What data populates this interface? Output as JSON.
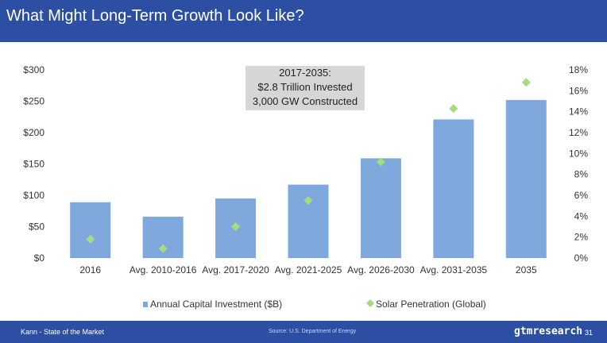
{
  "header": {
    "title": "What Might Long-Term Growth Look Like?"
  },
  "annotation": {
    "lines": [
      "2017-2035:",
      "$2.8 Trillion Invested",
      "3,000 GW Constructed"
    ]
  },
  "footer": {
    "left": "Kann - State of the Market",
    "source": "Source: U.S. Department of Energy",
    "brand": "gtmresearch",
    "page": "31"
  },
  "colors": {
    "bar": "#7fa8dd",
    "marker": "#a6dc7e",
    "header": "#2d4fa3"
  },
  "chart_data": {
    "type": "bar",
    "categories": [
      "2016",
      "Avg. 2010-2016",
      "Avg. 2017-2020",
      "Avg. 2021-2025",
      "Avg. 2026-2030",
      "Avg. 2031-2035",
      "2035"
    ],
    "series": [
      {
        "name": "Annual Capital Investment ($B)",
        "type": "bar",
        "axis": "left",
        "values": [
          89,
          66,
          95,
          117,
          159,
          221,
          252
        ]
      },
      {
        "name": "Solar Penetration (Global)",
        "type": "scatter",
        "axis": "right",
        "values": [
          1.8,
          0.9,
          3.0,
          5.5,
          9.2,
          14.3,
          16.8
        ]
      }
    ],
    "y_left": {
      "ylim": [
        0,
        300
      ],
      "ticks": [
        "$0",
        "$50",
        "$100",
        "$150",
        "$200",
        "$250",
        "$300"
      ]
    },
    "y_right": {
      "ylim": [
        0,
        18
      ],
      "ticks": [
        "0%",
        "2%",
        "4%",
        "6%",
        "8%",
        "10%",
        "12%",
        "14%",
        "16%",
        "18%"
      ]
    },
    "legend_position": "bottom"
  }
}
